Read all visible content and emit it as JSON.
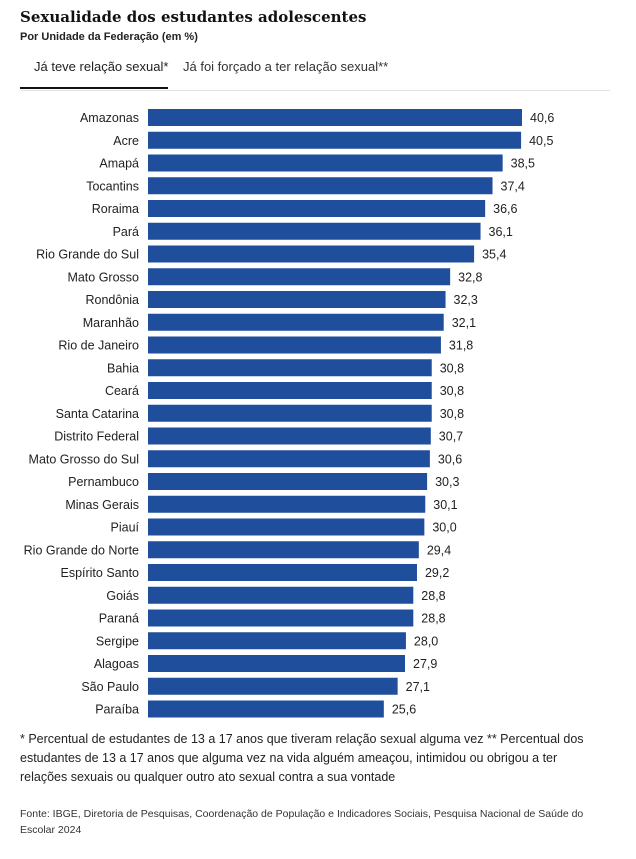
{
  "header": {
    "title": "Sexualidade dos estudantes adolescentes",
    "subtitle": "Por Unidade da Federação (em %)"
  },
  "tabs": [
    {
      "label": "Já teve relação sexual*",
      "active": true
    },
    {
      "label": "Já foi forçado a ter relação sexual**",
      "active": false
    }
  ],
  "chart_data": {
    "type": "bar",
    "orientation": "horizontal",
    "categories": [
      "Amazonas",
      "Acre",
      "Amapá",
      "Tocantins",
      "Roraima",
      "Pará",
      "Rio Grande do Sul",
      "Mato Grosso",
      "Rondônia",
      "Maranhão",
      "Rio de Janeiro",
      "Bahia",
      "Ceará",
      "Santa Catarina",
      "Distrito Federal",
      "Mato Grosso do Sul",
      "Pernambuco",
      "Minas Gerais",
      "Piauí",
      "Rio Grande do Norte",
      "Espírito Santo",
      "Goiás",
      "Paraná",
      "Sergipe",
      "Alagoas",
      "São Paulo",
      "Paraíba"
    ],
    "values": [
      40.6,
      40.5,
      38.5,
      37.4,
      36.6,
      36.1,
      35.4,
      32.8,
      32.3,
      32.1,
      31.8,
      30.8,
      30.8,
      30.8,
      30.7,
      30.6,
      30.3,
      30.1,
      30.0,
      29.4,
      29.2,
      28.8,
      28.8,
      28.0,
      27.9,
      27.1,
      25.6
    ],
    "value_labels": [
      "40,6",
      "40,5",
      "38,5",
      "37,4",
      "36,6",
      "36,1",
      "35,4",
      "32,8",
      "32,3",
      "32,1",
      "31,8",
      "30,8",
      "30,8",
      "30,8",
      "30,7",
      "30,6",
      "30,3",
      "30,1",
      "30,0",
      "29,4",
      "29,2",
      "28,8",
      "28,8",
      "28,0",
      "27,9",
      "27,1",
      "25,6"
    ],
    "color": "#1f4e9c",
    "xlim": [
      0,
      40.6
    ],
    "grid": false,
    "legend": "none"
  },
  "footnote": "* Percentual de estudantes de 13 a 17 anos que tiveram relação sexual alguma vez ** Percentual dos estudantes de 13 a 17 anos que alguma vez na vida alguém ameaçou, intimidou ou obrigou a ter relações sexuais ou qualquer outro ato sexual contra a sua vontade",
  "source": "Fonte: IBGE, Diretoria de Pesquisas, Coordenação de População e Indicadores Sociais, Pesquisa Nacional de Saúde do Escolar 2024"
}
